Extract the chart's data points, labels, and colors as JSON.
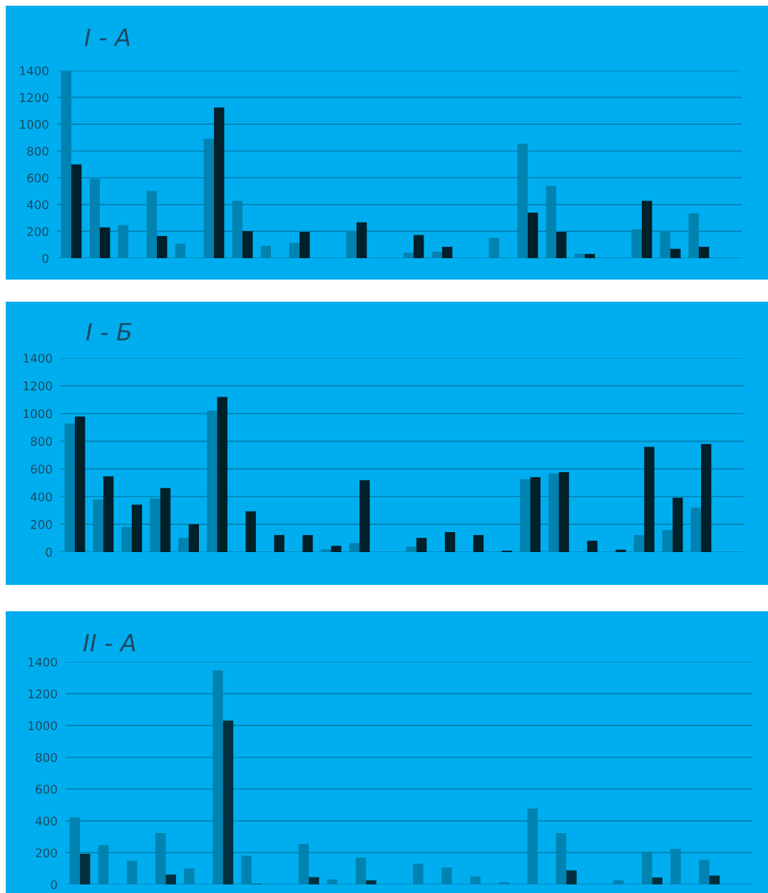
{
  "chart_data": [
    {
      "type": "bar",
      "title": "I - А",
      "categories": [
        null,
        null,
        null,
        null,
        null,
        null,
        null,
        null,
        null,
        null,
        null,
        null,
        null,
        null,
        null,
        null,
        null,
        null,
        null,
        null,
        null,
        null,
        null,
        null
      ],
      "series": [
        {
          "color": "#0083b0",
          "values": [
            1400,
            594,
            247,
            502,
            108,
            891,
            428,
            92,
            115,
            0,
            202,
            0,
            41,
            49,
            0,
            151,
            855,
            540,
            34,
            0,
            216,
            200,
            335,
            0
          ]
        },
        {
          "color": "#00202a",
          "values": [
            700,
            230,
            0,
            166,
            0,
            1125,
            202,
            0,
            196,
            0,
            268,
            0,
            173,
            85,
            0,
            0,
            340,
            196,
            32,
            0,
            428,
            70,
            85,
            0
          ]
        }
      ],
      "ylim": [
        0,
        1400
      ],
      "yticks": [
        0,
        200,
        400,
        600,
        800,
        1000,
        1200,
        1400
      ],
      "grid": "y",
      "tick_labels": "y"
    },
    {
      "type": "bar",
      "title": "I - Б",
      "categories": [
        null,
        null,
        null,
        null,
        null,
        null,
        null,
        null,
        null,
        null,
        null,
        null,
        null,
        null,
        null,
        null,
        null,
        null,
        null,
        null,
        null,
        null,
        null,
        null
      ],
      "series": [
        {
          "color": "#0083b0",
          "values": [
            928,
            379,
            181,
            386,
            102,
            1020,
            0,
            0,
            0,
            19,
            66,
            0,
            40,
            0,
            0,
            0,
            526,
            568,
            0,
            0,
            123,
            160,
            321,
            0
          ]
        },
        {
          "color": "#00202a",
          "values": [
            978,
            547,
            342,
            462,
            201,
            1120,
            294,
            123,
            123,
            45,
            519,
            0,
            102,
            144,
            123,
            10,
            540,
            577,
            82,
            17,
            759,
            393,
            780,
            0
          ]
        }
      ],
      "ylim": [
        0,
        1400
      ],
      "yticks": [
        0,
        200,
        400,
        600,
        800,
        1000,
        1200,
        1400
      ],
      "grid": "y",
      "tick_labels": "y"
    },
    {
      "type": "bar",
      "title": "II - А",
      "categories": [
        null,
        null,
        null,
        null,
        null,
        null,
        null,
        null,
        null,
        null,
        null,
        null,
        null,
        null,
        null,
        null,
        null,
        null,
        null,
        null,
        null,
        null,
        null,
        null
      ],
      "series": [
        {
          "color": "#0083b0",
          "values": [
            422,
            248,
            149,
            323,
            101,
            1347,
            181,
            0,
            256,
            32,
            169,
            0,
            131,
            107,
            50,
            14,
            478,
            323,
            0,
            26,
            206,
            224,
            155,
            0
          ]
        },
        {
          "color": "#003040",
          "values": [
            193,
            0,
            0,
            62,
            0,
            1031,
            3,
            0,
            46,
            0,
            26,
            0,
            0,
            0,
            0,
            0,
            0,
            88,
            0,
            0,
            44,
            0,
            56,
            0
          ]
        }
      ],
      "ylim": [
        0,
        1400
      ],
      "yticks": [
        0,
        200,
        400,
        600,
        800,
        1000,
        1200,
        1400
      ],
      "grid": "y",
      "tick_labels": "y"
    }
  ]
}
